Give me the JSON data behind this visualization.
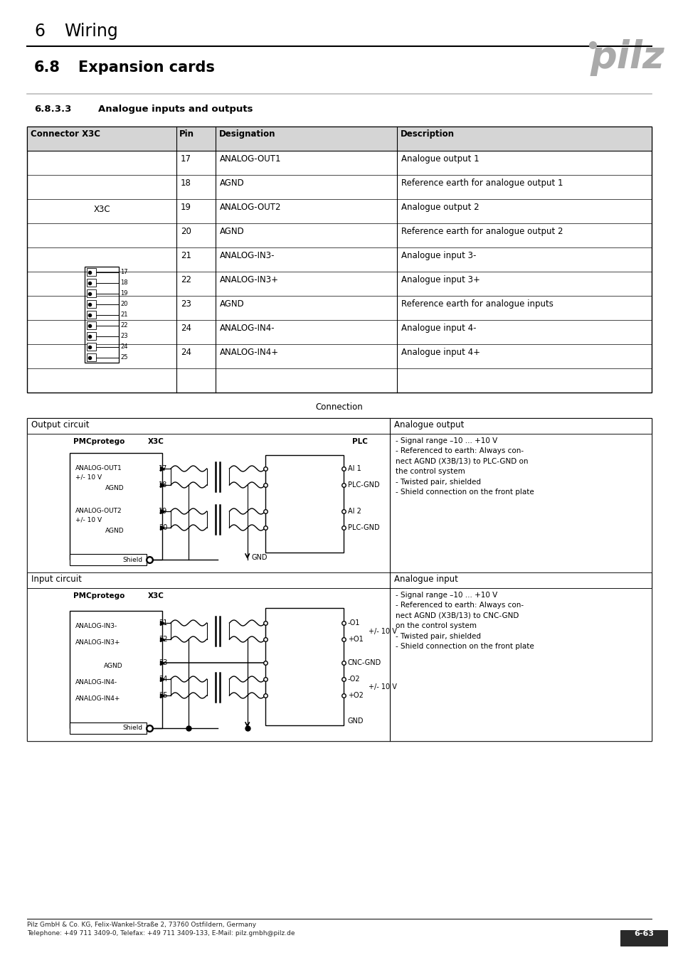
{
  "page_title_num": "6",
  "page_title_text": "Wiring",
  "section_num": "6.8",
  "section_text": "Expansion cards",
  "subsection": "6.8.3.3    Analogue inputs and outputs",
  "table_header": [
    "Connector X3C",
    "Pin",
    "Designation",
    "Description"
  ],
  "table_rows": [
    [
      "",
      "17",
      "ANALOG-OUT1",
      "Analogue output 1"
    ],
    [
      "",
      "18",
      "AGND",
      "Reference earth for analogue output 1"
    ],
    [
      "",
      "19",
      "ANALOG-OUT2",
      "Analogue output 2"
    ],
    [
      "",
      "20",
      "AGND",
      "Reference earth for analogue output 2"
    ],
    [
      "",
      "21",
      "ANALOG-IN3-",
      "Analogue input 3-"
    ],
    [
      "",
      "22",
      "ANALOG-IN3+",
      "Analogue input 3+"
    ],
    [
      "",
      "23",
      "AGND",
      "Reference earth for analogue inputs"
    ],
    [
      "",
      "24",
      "ANALOG-IN4-",
      "Analogue input 4-"
    ],
    [
      "",
      "24",
      "ANALOG-IN4+",
      "Analogue input 4+"
    ],
    [
      "",
      "",
      "",
      ""
    ]
  ],
  "connection_label": "Connection",
  "output_circuit_label": "Output circuit",
  "analogue_output_label": "Analogue output",
  "input_circuit_label": "Input circuit",
  "analogue_input_label": "Analogue input",
  "output_desc": "- Signal range –10 ... +10 V\n- Referenced to earth: Always con-\nnect AGND (X3B/13) to PLC-GND on\nthe control system\n- Twisted pair, shielded\n- Shield connection on the front plate",
  "input_desc": "- Signal range –10 ... +10 V\n- Referenced to earth: Always con-\nnect AGND (X3B/13) to CNC-GND\non the control system\n- Twisted pair, shielded\n- Shield connection on the front plate",
  "footer_line1": "Pilz GmbH & Co. KG, Felix-Wankel-Straße 2, 73760 Ostfildern, Germany",
  "footer_line2": "Telephone: +49 711 3409-0, Telefax: +49 711 3409-133, E-Mail: pilz.gmbh@pilz.de",
  "footer_page": "6-63",
  "pilz_color": "#aaaaaa"
}
